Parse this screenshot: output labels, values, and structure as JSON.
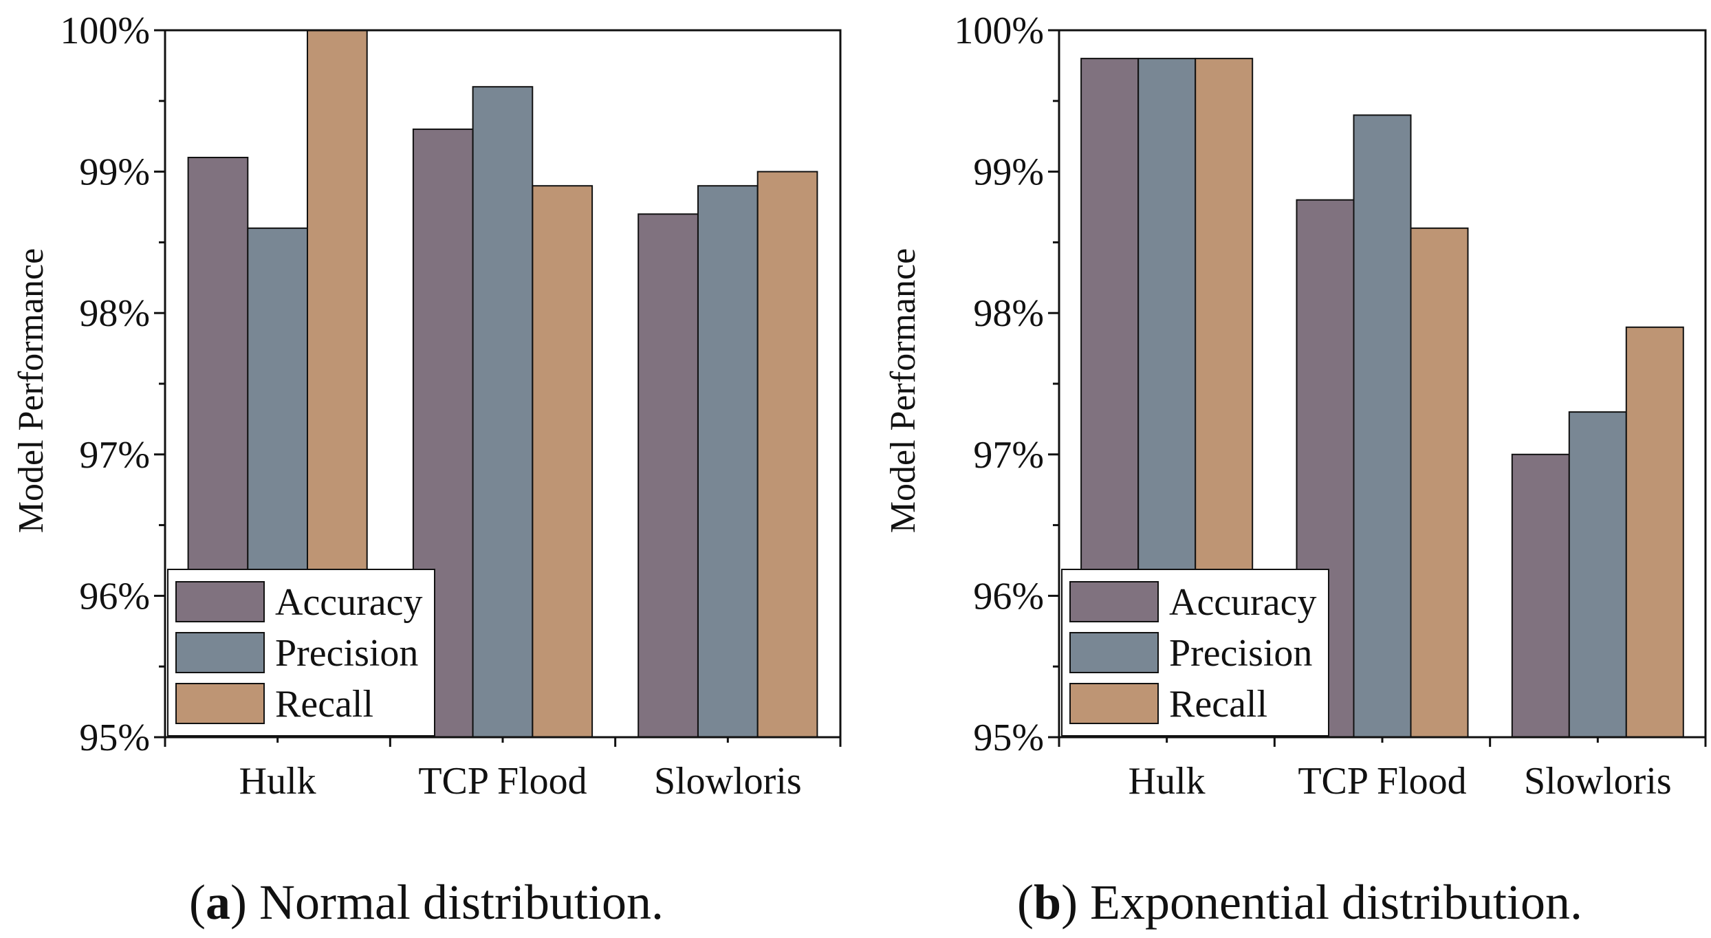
{
  "chart_data": [
    {
      "type": "bar",
      "caption": {
        "tag": "a",
        "text": "Normal distribution."
      },
      "ylabel": "Model Performance",
      "xlabel": "",
      "ylim": [
        95,
        100
      ],
      "yticks": [
        "95%",
        "96%",
        "97%",
        "98%",
        "99%",
        "100%"
      ],
      "categories": [
        "Hulk",
        "TCP Flood",
        "Slowloris"
      ],
      "legend_position": "lower-left",
      "series": [
        {
          "name": "Accuracy",
          "color": "#80727f",
          "values": [
            99.1,
            99.3,
            98.7
          ]
        },
        {
          "name": "Precision",
          "color": "#798794",
          "values": [
            98.6,
            99.6,
            98.9
          ]
        },
        {
          "name": "Recall",
          "color": "#be9574",
          "values": [
            100.0,
            98.9,
            99.0
          ]
        }
      ]
    },
    {
      "type": "bar",
      "caption": {
        "tag": "b",
        "text": "Exponential distribution."
      },
      "ylabel": "Model Performance",
      "xlabel": "",
      "ylim": [
        95,
        100
      ],
      "yticks": [
        "95%",
        "96%",
        "97%",
        "98%",
        "99%",
        "100%"
      ],
      "categories": [
        "Hulk",
        "TCP Flood",
        "Slowloris"
      ],
      "legend_position": "lower-left",
      "series": [
        {
          "name": "Accuracy",
          "color": "#80727f",
          "values": [
            99.8,
            98.8,
            97.0
          ]
        },
        {
          "name": "Precision",
          "color": "#798794",
          "values": [
            99.8,
            99.4,
            97.3
          ]
        },
        {
          "name": "Recall",
          "color": "#be9574",
          "values": [
            99.8,
            98.6,
            97.9
          ]
        }
      ]
    }
  ]
}
